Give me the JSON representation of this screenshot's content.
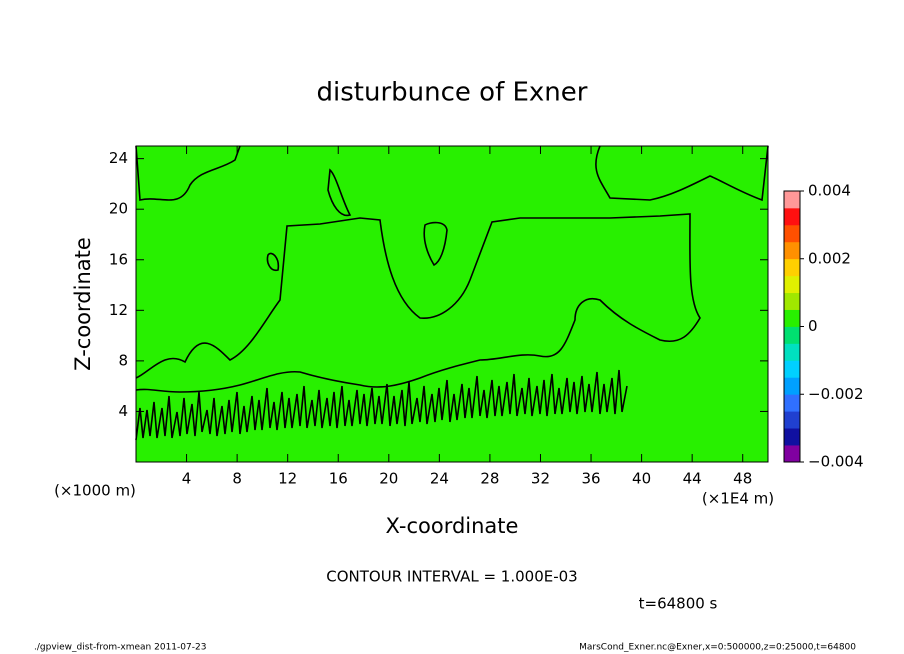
{
  "chart_data": {
    "type": "contour",
    "title": "disturbunce of Exner",
    "x_label": "X-coordinate",
    "y_label": "Z-coordinate",
    "x_unit": "(×1E4 m)",
    "y_unit": "(×1000 m)",
    "xlim": [
      0,
      50
    ],
    "xticks": [
      4,
      8,
      12,
      16,
      20,
      24,
      28,
      32,
      36,
      40,
      44,
      48
    ],
    "ylim": [
      0,
      25
    ],
    "yticks": [
      4,
      8,
      12,
      16,
      20,
      24
    ],
    "field_color": "#28f000",
    "colorbar": {
      "lim": [
        -0.004,
        0.004
      ],
      "ticks": [
        {
          "value": -0.004,
          "label": "−0.004"
        },
        {
          "value": -0.002,
          "label": "−0.002"
        },
        0,
        0.002,
        0.004
      ],
      "colors": [
        "#8000a0",
        "#1010a0",
        "#2040d0",
        "#3070ff",
        "#00a0ff",
        "#00d0ff",
        "#00e0c0",
        "#00e070",
        "#28f000",
        "#a0e800",
        "#e0f000",
        "#ffd000",
        "#ff9000",
        "#ff5000",
        "#ff1010",
        "#ff9898"
      ]
    },
    "annotation": "CONTOUR INTERVAL = 1.000E-03",
    "time_label": "t=64800 s",
    "footer_left": "./gpview_dist-from-xmean  2011-07-23",
    "footer_right": "MarsCond_Exner.nc@Exner,x=0:500000,z=0:25000,t=64800"
  }
}
